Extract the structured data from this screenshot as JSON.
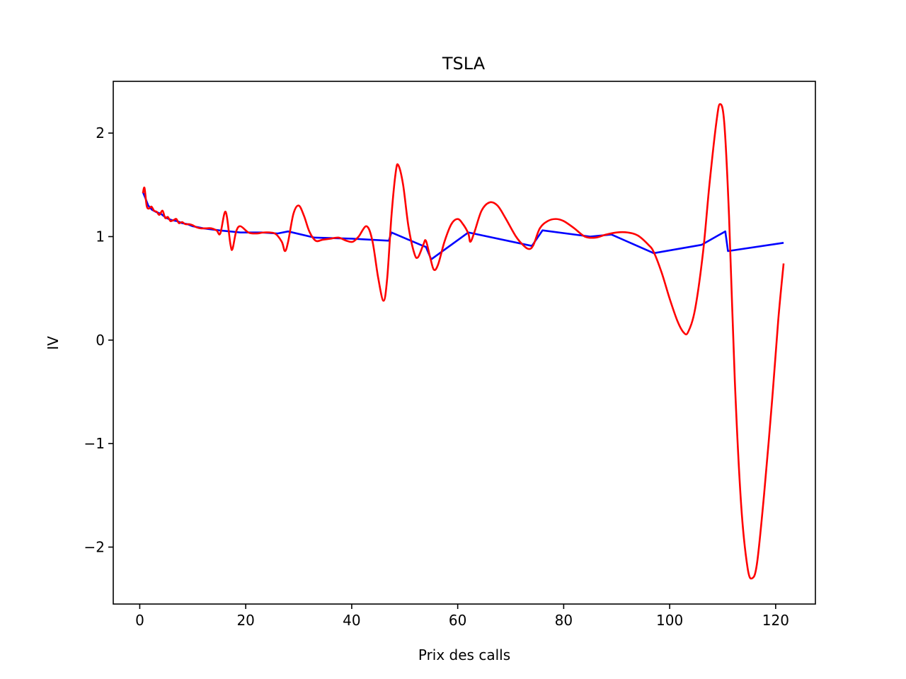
{
  "chart_data": {
    "type": "line",
    "title": "TSLA",
    "xlabel": "Prix des calls",
    "ylabel": "IV",
    "xlim": [
      -5,
      127.5
    ],
    "ylim": [
      -2.55,
      2.5
    ],
    "xticks": [
      0,
      20,
      40,
      60,
      80,
      100,
      120
    ],
    "xtick_labels": [
      "0",
      "20",
      "40",
      "60",
      "80",
      "100",
      "120"
    ],
    "yticks": [
      -2,
      -1,
      0,
      1,
      2
    ],
    "ytick_labels": [
      "−2",
      "−1",
      "0",
      "1",
      "2"
    ],
    "grid": false,
    "legend": "none",
    "series": [
      {
        "color": "#0000ff",
        "style": "polyline",
        "points": [
          [
            0.6,
            1.43
          ],
          [
            1.0,
            1.38
          ],
          [
            1.6,
            1.3
          ],
          [
            2.3,
            1.26
          ],
          [
            3.0,
            1.24
          ],
          [
            4.0,
            1.22
          ],
          [
            5.0,
            1.18
          ],
          [
            6.0,
            1.16
          ],
          [
            7.0,
            1.15
          ],
          [
            8.0,
            1.13
          ],
          [
            9.0,
            1.12
          ],
          [
            10.0,
            1.1
          ],
          [
            11.0,
            1.09
          ],
          [
            12.0,
            1.08
          ],
          [
            15.0,
            1.06
          ],
          [
            19.0,
            1.04
          ],
          [
            23.0,
            1.04
          ],
          [
            26.0,
            1.03
          ],
          [
            28.0,
            1.05
          ],
          [
            33.0,
            0.99
          ],
          [
            40.0,
            0.98
          ],
          [
            47.0,
            0.96
          ],
          [
            47.5,
            1.04
          ],
          [
            53.0,
            0.92
          ],
          [
            54.0,
            0.9
          ],
          [
            55.0,
            0.78
          ],
          [
            62.0,
            1.04
          ],
          [
            74.0,
            0.91
          ],
          [
            76.0,
            1.06
          ],
          [
            85.0,
            1.0
          ],
          [
            89.0,
            1.02
          ],
          [
            97.0,
            0.84
          ],
          [
            106.0,
            0.92
          ],
          [
            110.5,
            1.05
          ],
          [
            111.0,
            0.86
          ],
          [
            121.5,
            0.94
          ]
        ]
      },
      {
        "color": "#ff0000",
        "style": "smooth",
        "points": [
          [
            0.6,
            1.42
          ],
          [
            0.9,
            1.47
          ],
          [
            1.3,
            1.3
          ],
          [
            1.7,
            1.27
          ],
          [
            2.2,
            1.29
          ],
          [
            2.7,
            1.25
          ],
          [
            3.2,
            1.24
          ],
          [
            3.7,
            1.21
          ],
          [
            4.3,
            1.25
          ],
          [
            4.8,
            1.18
          ],
          [
            5.3,
            1.19
          ],
          [
            5.8,
            1.15
          ],
          [
            6.4,
            1.16
          ],
          [
            6.9,
            1.17
          ],
          [
            7.4,
            1.13
          ],
          [
            8.0,
            1.14
          ],
          [
            8.6,
            1.12
          ],
          [
            9.3,
            1.12
          ],
          [
            10.0,
            1.11
          ],
          [
            10.7,
            1.09
          ],
          [
            11.5,
            1.08
          ],
          [
            12.5,
            1.08
          ],
          [
            13.5,
            1.08
          ],
          [
            14.5,
            1.06
          ],
          [
            15.2,
            1.03
          ],
          [
            16.2,
            1.24
          ],
          [
            17.1,
            0.93
          ],
          [
            17.5,
            0.88
          ],
          [
            18.2,
            1.05
          ],
          [
            19.0,
            1.1
          ],
          [
            20.5,
            1.04
          ],
          [
            22.0,
            1.03
          ],
          [
            23.5,
            1.04
          ],
          [
            25.5,
            1.03
          ],
          [
            26.8,
            0.95
          ],
          [
            27.4,
            0.86
          ],
          [
            28.0,
            0.95
          ],
          [
            29.0,
            1.22
          ],
          [
            30.0,
            1.3
          ],
          [
            31.0,
            1.2
          ],
          [
            32.0,
            1.05
          ],
          [
            33.2,
            0.96
          ],
          [
            34.5,
            0.97
          ],
          [
            36.0,
            0.98
          ],
          [
            37.5,
            0.99
          ],
          [
            39.0,
            0.96
          ],
          [
            40.2,
            0.95
          ],
          [
            41.3,
            1.0
          ],
          [
            42.8,
            1.1
          ],
          [
            43.9,
            0.96
          ],
          [
            45.0,
            0.6
          ],
          [
            46.0,
            0.38
          ],
          [
            46.7,
            0.6
          ],
          [
            47.5,
            1.2
          ],
          [
            48.3,
            1.62
          ],
          [
            48.8,
            1.69
          ],
          [
            49.7,
            1.5
          ],
          [
            50.7,
            1.1
          ],
          [
            51.8,
            0.84
          ],
          [
            52.5,
            0.8
          ],
          [
            53.5,
            0.92
          ],
          [
            54.0,
            0.96
          ],
          [
            54.8,
            0.8
          ],
          [
            55.5,
            0.68
          ],
          [
            56.3,
            0.73
          ],
          [
            57.5,
            0.95
          ],
          [
            58.8,
            1.12
          ],
          [
            60.0,
            1.17
          ],
          [
            61.0,
            1.12
          ],
          [
            62.0,
            1.03
          ],
          [
            62.4,
            0.95
          ],
          [
            63.2,
            1.05
          ],
          [
            64.5,
            1.25
          ],
          [
            66.0,
            1.33
          ],
          [
            67.5,
            1.3
          ],
          [
            69.0,
            1.18
          ],
          [
            71.0,
            1.0
          ],
          [
            72.5,
            0.91
          ],
          [
            73.5,
            0.88
          ],
          [
            74.3,
            0.92
          ],
          [
            75.5,
            1.08
          ],
          [
            77.0,
            1.15
          ],
          [
            78.5,
            1.17
          ],
          [
            80.0,
            1.15
          ],
          [
            82.0,
            1.08
          ],
          [
            84.0,
            1.0
          ],
          [
            86.0,
            0.99
          ],
          [
            88.0,
            1.02
          ],
          [
            90.0,
            1.04
          ],
          [
            92.0,
            1.04
          ],
          [
            94.0,
            1.01
          ],
          [
            96.0,
            0.92
          ],
          [
            97.0,
            0.85
          ],
          [
            98.5,
            0.65
          ],
          [
            100.0,
            0.4
          ],
          [
            101.5,
            0.18
          ],
          [
            102.7,
            0.07
          ],
          [
            103.5,
            0.08
          ],
          [
            104.8,
            0.3
          ],
          [
            106.3,
            0.85
          ],
          [
            107.5,
            1.5
          ],
          [
            108.8,
            2.1
          ],
          [
            109.5,
            2.28
          ],
          [
            110.3,
            2.1
          ],
          [
            111.2,
            1.2
          ],
          [
            112.3,
            -0.4
          ],
          [
            113.5,
            -1.6
          ],
          [
            114.7,
            -2.2
          ],
          [
            115.6,
            -2.3
          ],
          [
            116.5,
            -2.15
          ],
          [
            117.8,
            -1.5
          ],
          [
            119.3,
            -0.6
          ],
          [
            120.5,
            0.2
          ],
          [
            121.5,
            0.74
          ]
        ]
      }
    ]
  }
}
